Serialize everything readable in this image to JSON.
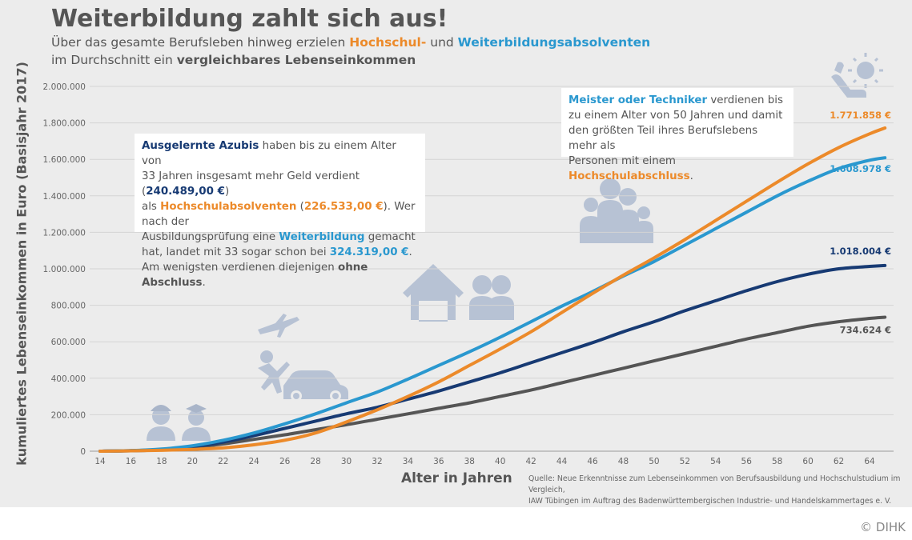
{
  "header": {
    "title": "Weiterbildung zahlt sich aus!",
    "subtitle_line1_a": "Über das gesamte Berufsleben hinweg erzielen ",
    "subtitle_line1_b": "Hochschul-",
    "subtitle_line1_c": " und ",
    "subtitle_line1_d": "Weiterbildungsabsolventen",
    "subtitle_line2_a": "im Durchschnitt ein ",
    "subtitle_line2_b": "vergleichbares Lebenseinkommen"
  },
  "box_left": {
    "l1_a": "Ausgelernte Azubis",
    "l1_b": " haben bis zu einem Alter von",
    "l2_a": "33 Jahren insgesamt mehr Geld verdient (",
    "l2_b": "240.489,00 €",
    "l2_c": ")",
    "l3_a": "als ",
    "l3_b": "Hochschulabsolventen",
    "l3_c": " (",
    "l3_d": "226.533,00 €",
    "l3_e": "). Wer nach der",
    "l4_a": "Ausbildungsprüfung eine ",
    "l4_b": "Weiterbildung",
    "l4_c": " gemacht",
    "l5_a": "hat, landet mit 33 sogar schon bei ",
    "l5_b": "324.319,00 €",
    "l5_c": ".",
    "l6_a": "Am wenigsten verdienen diejenigen ",
    "l6_b": "ohne Abschluss",
    "l6_c": "."
  },
  "box_right": {
    "l1_a": "Meister oder Techniker",
    "l1_b": " verdienen bis",
    "l2": "zu einem Alter von 50 Jahren und damit",
    "l3": "den größten Teil ihres Berufslebens mehr als",
    "l4_a": "Personen mit einem ",
    "l4_b": "Hochschulabschluss",
    "l4_c": "."
  },
  "end_labels": {
    "hochschule": "1.771.858 €",
    "weiterbildung": "1.608.978 €",
    "azubi": "1.018.004 €",
    "ohne": "734.624 €"
  },
  "source": {
    "line1": "Quelle: Neue Erkenntnisse zum Lebenseinkommen von Berufsausbildung und Hochschulstudium im Vergleich,",
    "line2": "IAW Tübingen im Auftrag des Badenwürttembergischen Industrie- und Handelskammertages e. V."
  },
  "copyright": "© DIHK",
  "colors": {
    "hochschule": "#ec8a2a",
    "weiterbildung": "#2a98cf",
    "azubi": "#173a73",
    "ohne": "#555555",
    "icons": "#b7c2d4",
    "background": "#ececec"
  },
  "icons": [
    "workers-icon",
    "plane-icon",
    "person-jumping-icon",
    "car-icon",
    "house-icon",
    "couple-icon",
    "family-icon",
    "retiree-sun-icon"
  ],
  "chart_data": {
    "type": "line",
    "title": "Weiterbildung zahlt sich aus!",
    "xlabel": "Alter in Jahren",
    "ylabel": "kumuliertes Lebenseinkommen in Euro (Basisjahr 2017)",
    "x_ticks": [
      "14",
      "16",
      "18",
      "20",
      "22",
      "24",
      "26",
      "28",
      "30",
      "32",
      "34",
      "36",
      "38",
      "40",
      "42",
      "44",
      "46",
      "48",
      "50",
      "52",
      "54",
      "56",
      "58",
      "60",
      "62",
      "64"
    ],
    "y_ticks": [
      "0",
      "200.000",
      "400.000",
      "600.000",
      "800.000",
      "1.000.000",
      "1.200.000",
      "1.400.000",
      "1.600.000",
      "1.800.000",
      "2.000.000"
    ],
    "xlim": [
      14,
      65
    ],
    "ylim": [
      0,
      2000000
    ],
    "grid": true,
    "series": [
      {
        "key": "ohne",
        "x": [
          14,
          16,
          18,
          20,
          22,
          24,
          26,
          28,
          30,
          32,
          34,
          36,
          38,
          40,
          42,
          44,
          46,
          48,
          50,
          52,
          54,
          56,
          58,
          60,
          62,
          64,
          65
        ],
        "values": [
          0,
          2000,
          8000,
          20000,
          40000,
          65000,
          90000,
          118000,
          145000,
          175000,
          205000,
          235000,
          265000,
          300000,
          335000,
          375000,
          415000,
          455000,
          495000,
          535000,
          575000,
          615000,
          650000,
          685000,
          710000,
          728000,
          734624
        ]
      },
      {
        "key": "azubi",
        "x": [
          14,
          16,
          18,
          20,
          22,
          24,
          26,
          28,
          30,
          32,
          34,
          36,
          38,
          40,
          42,
          44,
          46,
          48,
          50,
          52,
          54,
          56,
          58,
          60,
          62,
          64,
          65
        ],
        "values": [
          0,
          3000,
          10000,
          25000,
          50000,
          85000,
          125000,
          165000,
          205000,
          240489,
          285000,
          330000,
          380000,
          430000,
          485000,
          540000,
          595000,
          655000,
          710000,
          770000,
          825000,
          880000,
          930000,
          970000,
          1000000,
          1013000,
          1018004
        ]
      },
      {
        "key": "weiterbildung",
        "x": [
          14,
          16,
          18,
          20,
          22,
          24,
          26,
          28,
          30,
          32,
          34,
          36,
          38,
          40,
          42,
          44,
          46,
          48,
          50,
          52,
          54,
          56,
          58,
          60,
          62,
          64,
          65
        ],
        "values": [
          0,
          3000,
          12000,
          30000,
          60000,
          100000,
          150000,
          205000,
          265000,
          324319,
          395000,
          470000,
          545000,
          625000,
          710000,
          795000,
          875000,
          960000,
          1040000,
          1130000,
          1220000,
          1310000,
          1400000,
          1480000,
          1550000,
          1595000,
          1608978
        ]
      },
      {
        "key": "hochschule",
        "x": [
          14,
          16,
          18,
          20,
          22,
          24,
          26,
          28,
          30,
          32,
          34,
          36,
          38,
          40,
          42,
          44,
          46,
          48,
          50,
          52,
          54,
          56,
          58,
          60,
          62,
          64,
          65
        ],
        "values": [
          0,
          2000,
          5000,
          10000,
          18000,
          35000,
          60000,
          100000,
          160000,
          226533,
          300000,
          380000,
          470000,
          560000,
          655000,
          760000,
          865000,
          965000,
          1060000,
          1160000,
          1265000,
          1370000,
          1475000,
          1575000,
          1665000,
          1740000,
          1771858
        ]
      }
    ]
  }
}
